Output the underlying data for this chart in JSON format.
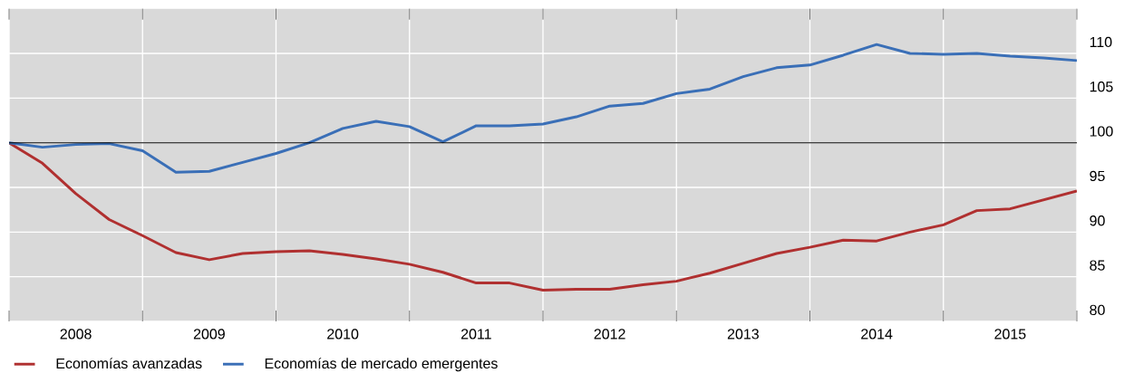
{
  "chart_data": {
    "type": "line",
    "x": [
      2008,
      2008.25,
      2008.5,
      2008.75,
      2009,
      2009.25,
      2009.5,
      2009.75,
      2010,
      2010.25,
      2010.5,
      2010.75,
      2011,
      2011.25,
      2011.5,
      2011.75,
      2012,
      2012.25,
      2012.5,
      2012.75,
      2013,
      2013.25,
      2013.5,
      2013.75,
      2014,
      2014.25,
      2014.5,
      2014.75,
      2015,
      2015.25,
      2015.5,
      2015.75,
      2016
    ],
    "series": [
      {
        "name": "Economías avanzadas",
        "color": "#b03030",
        "values": [
          100,
          97.7,
          94.3,
          91.4,
          89.6,
          87.7,
          86.9,
          87.6,
          87.8,
          87.9,
          87.5,
          87,
          86.4,
          85.5,
          84.3,
          84.3,
          83.5,
          83.6,
          83.6,
          84.1,
          84.5,
          85.4,
          86.5,
          87.6,
          88.3,
          89.1,
          89,
          90,
          90.8,
          92.4,
          92.6,
          93.6,
          94.6
        ]
      },
      {
        "name": "Economías de mercado emergentes",
        "color": "#3a6fb7",
        "values": [
          100,
          99.5,
          99.8,
          99.9,
          99.1,
          96.7,
          96.8,
          97.8,
          98.8,
          100,
          101.6,
          102.4,
          101.8,
          100.1,
          101.9,
          101.9,
          102.1,
          102.9,
          104.1,
          104.4,
          105.5,
          106,
          107.4,
          108.4,
          108.7,
          109.8,
          111,
          110,
          109.9,
          110,
          109.7,
          109.5,
          109.2
        ]
      }
    ],
    "xlim": [
      2008,
      2016
    ],
    "xticks": [
      {
        "value": 2008,
        "label": null
      },
      {
        "value": 2009,
        "label": null
      },
      {
        "value": 2010,
        "label": null
      },
      {
        "value": 2011,
        "label": null
      },
      {
        "value": 2012,
        "label": null
      },
      {
        "value": 2013,
        "label": null
      },
      {
        "value": 2014,
        "label": null
      },
      {
        "value": 2015,
        "label": null
      },
      {
        "value": 2016,
        "label": null
      },
      {
        "value": 2008.5,
        "label": "2008"
      },
      {
        "value": 2009.5,
        "label": "2009"
      },
      {
        "value": 2010.5,
        "label": "2010"
      },
      {
        "value": 2011.5,
        "label": "2011"
      },
      {
        "value": 2012.5,
        "label": "2012"
      },
      {
        "value": 2013.5,
        "label": "2013"
      },
      {
        "value": 2014.5,
        "label": "2014"
      },
      {
        "value": 2015.5,
        "label": "2015"
      }
    ],
    "ylim": [
      80,
      115
    ],
    "yticks": [
      80,
      85,
      90,
      95,
      100,
      105,
      110
    ],
    "ref_lines": [
      {
        "axis": "y",
        "value": 100,
        "label": null,
        "color": "#000000"
      }
    ],
    "grid": true,
    "legend": "bottom left",
    "marker": "none",
    "line_style": "solid"
  }
}
